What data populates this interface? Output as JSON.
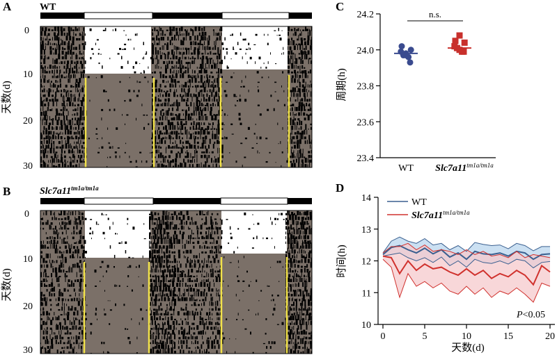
{
  "panels": {
    "A": {
      "letter": "A",
      "label": "WT"
    },
    "B": {
      "letter": "B",
      "label_main": "Slc7a11",
      "label_sup": "tm1a/tm1a"
    },
    "C": {
      "letter": "C"
    },
    "D": {
      "letter": "D"
    }
  },
  "actogram": {
    "ylabel": "天数(d)",
    "ticks": [
      "0",
      "10",
      "20",
      "30"
    ],
    "colors": {
      "dark_bg": "#7b7068",
      "light_bg": "#ffffff",
      "activity": "#000000",
      "onset_line": "#f2e24a"
    },
    "light_until_day": {
      "A": 10,
      "B": 10
    }
  },
  "chart_data": [
    {
      "type": "scatter",
      "panel": "C",
      "ylabel": "周期(h)",
      "yticks": [
        "23.4",
        "23.6",
        "23.8",
        "24.0",
        "24.2"
      ],
      "ylim": [
        23.4,
        24.2
      ],
      "categories": [
        "WT",
        "Slc7a11"
      ],
      "category_sup": [
        "",
        "tm1a/tm1a"
      ],
      "significance": "n.s.",
      "series": [
        {
          "group": "WT",
          "marker": "circle",
          "color": "#3a4b8f",
          "mean": 23.98,
          "values": [
            23.97,
            24.0,
            23.99,
            23.98,
            23.97,
            23.96,
            24.02,
            23.93
          ]
        },
        {
          "group": "Slc7a11 tm1a/tm1a",
          "marker": "square",
          "color": "#c8302c",
          "mean": 24.01,
          "values": [
            24.08,
            24.04,
            24.02,
            24.0,
            24.01,
            23.99,
            24.05,
            23.99
          ]
        }
      ]
    },
    {
      "type": "line",
      "panel": "D",
      "ylabel": "时间(h)",
      "xlabel": "天数(d)",
      "xlim": [
        0,
        20
      ],
      "ylim": [
        10,
        14
      ],
      "xticks": [
        "0",
        "5",
        "10",
        "15",
        "20"
      ],
      "yticks": [
        "10",
        "11",
        "12",
        "13",
        "14"
      ],
      "annotation": {
        "italic": "P",
        "text": "<0.05"
      },
      "legend": [
        {
          "main": "WT",
          "sup": "",
          "color": "#3a5f8f"
        },
        {
          "main": "Slc7a11",
          "sup": "tm1a/tm1a",
          "color": "#d0312d"
        }
      ],
      "x": [
        0,
        1,
        2,
        3,
        4,
        5,
        6,
        7,
        8,
        9,
        10,
        11,
        12,
        13,
        14,
        15,
        16,
        17,
        18,
        19,
        20
      ],
      "series": [
        {
          "name": "WT",
          "color": "#3a5f8f",
          "band_color": "#b9d5ee",
          "mean": [
            12.2,
            12.42,
            12.48,
            12.35,
            12.25,
            12.4,
            12.22,
            12.35,
            12.12,
            12.25,
            12.05,
            12.3,
            12.22,
            12.2,
            12.25,
            12.15,
            12.3,
            12.25,
            12.05,
            12.2,
            12.22
          ],
          "upper": [
            12.25,
            12.62,
            12.75,
            12.62,
            12.55,
            12.7,
            12.5,
            12.55,
            12.35,
            12.48,
            12.3,
            12.58,
            12.52,
            12.48,
            12.5,
            12.38,
            12.55,
            12.48,
            12.32,
            12.45,
            12.45
          ],
          "lower": [
            12.15,
            12.2,
            12.25,
            12.1,
            12.0,
            12.1,
            11.95,
            12.12,
            11.85,
            12.0,
            11.8,
            12.05,
            11.95,
            11.92,
            12.0,
            11.9,
            12.05,
            12.0,
            11.78,
            11.95,
            11.98
          ]
        },
        {
          "name": "Slc7a11 tm1a/tm1a",
          "color": "#d0312d",
          "band_color": "#f6c9cc",
          "mean": [
            12.15,
            12.1,
            11.6,
            12.0,
            11.7,
            11.9,
            11.75,
            11.8,
            11.65,
            11.55,
            11.75,
            11.55,
            11.7,
            11.45,
            11.6,
            11.5,
            11.7,
            11.55,
            11.25,
            11.85,
            11.65
          ],
          "upper": [
            12.25,
            12.45,
            12.45,
            12.55,
            12.35,
            12.5,
            12.3,
            12.35,
            12.3,
            12.2,
            12.35,
            12.2,
            12.3,
            12.15,
            12.2,
            12.1,
            12.3,
            12.1,
            12.2,
            12.15,
            12.1
          ],
          "lower": [
            12.05,
            11.8,
            10.85,
            11.6,
            11.2,
            11.35,
            11.15,
            11.3,
            11.05,
            10.95,
            11.2,
            10.95,
            11.15,
            10.85,
            11.05,
            10.95,
            11.15,
            10.95,
            10.7,
            11.3,
            11.2
          ]
        }
      ]
    }
  ]
}
